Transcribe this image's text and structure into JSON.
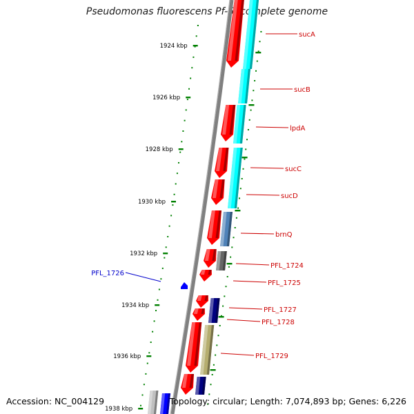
{
  "title": "Pseudomonas fluorescens Pf-5, complete genome",
  "accession": {
    "label": "Accession:",
    "value": "NC_004129"
  },
  "summary": {
    "topology_label": "Topology:",
    "topology": "circular",
    "length_label": "Length:",
    "length": "7,074,893 bp",
    "genes_label": "Genes:",
    "genes": "6,226"
  },
  "scale": {
    "unit": "kbp",
    "ticks": [
      1924,
      1926,
      1928,
      1930,
      1932,
      1934,
      1936,
      1938
    ],
    "tick_labels": [
      "1924 kbp",
      "1926 kbp",
      "1928 kbp",
      "1930 kbp",
      "1932 kbp",
      "1934 kbp",
      "1936 kbp",
      "1938 kbp"
    ]
  },
  "colors": {
    "cds": "#ff0000",
    "sucA": "#00ffff",
    "brnQ": "#4f82b8",
    "pfl1724": "#666666",
    "pfl1726": "#0000ff",
    "pfl1727": "#000080",
    "pfl1729": "#b5ad6f",
    "pfl1730": "#000080",
    "pfl1731": "#0000ff",
    "grey_feature": "#c0c0c0",
    "label_forward": "#cc0000",
    "label_reverse": "#0000cc",
    "ticks": "#008000",
    "backbone": "#808080"
  },
  "gene_labels": [
    {
      "name": "sucA",
      "strand": "forward"
    },
    {
      "name": "sucB",
      "strand": "forward"
    },
    {
      "name": "lpdA",
      "strand": "forward"
    },
    {
      "name": "sucC",
      "strand": "forward"
    },
    {
      "name": "sucD",
      "strand": "forward"
    },
    {
      "name": "brnQ",
      "strand": "forward"
    },
    {
      "name": "PFL_1724",
      "strand": "forward"
    },
    {
      "name": "PFL_1725",
      "strand": "forward"
    },
    {
      "name": "PFL_1726",
      "strand": "reverse"
    },
    {
      "name": "PFL_1727",
      "strand": "forward"
    },
    {
      "name": "PFL_1728",
      "strand": "forward"
    },
    {
      "name": "PFL_1729",
      "strand": "forward"
    }
  ]
}
